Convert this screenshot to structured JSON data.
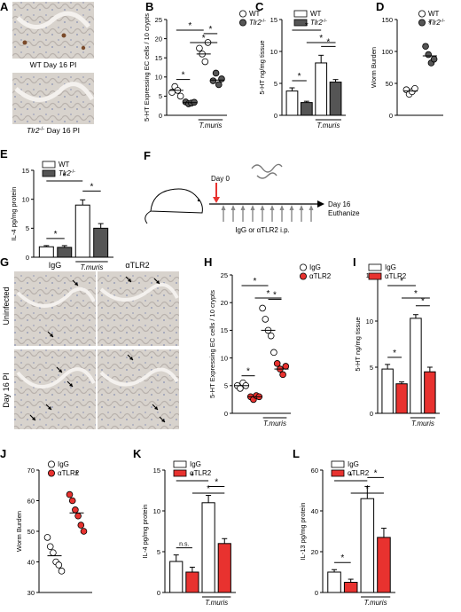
{
  "figure": {
    "panel_A": {
      "letter": "A",
      "top_label": "WT Day 16 PI",
      "bottom_label_italic": "Tlr2",
      "bottom_label_sup": "-/-",
      "bottom_label_rest": " Day 16 PI"
    },
    "panel_F": {
      "letter": "F",
      "day0": "Day 0",
      "day16": "Day 16",
      "euthanize": "Euthanize",
      "injection": "IgG or αTLR2 i.p."
    },
    "panel_G": {
      "letter": "G",
      "col1": "IgG",
      "col2": "αTLR2",
      "row1": "Uninfected",
      "row2": "Day 16 PI"
    },
    "colors": {
      "wt_fill": "#ffffff",
      "tlr2_fill": "#555555",
      "igg_fill": "#ffffff",
      "atlr2_fill": "#e8322f",
      "tissue_bg": "#d9d4cf",
      "stain_brown": "#7a4a2a"
    }
  },
  "chart_data": [
    {
      "id": "B",
      "type": "scatter",
      "ylabel": "5-HT Expressing EC cells / 10 crypts",
      "ylim": [
        0,
        25
      ],
      "yticks": [
        0,
        5,
        10,
        15,
        20,
        25
      ],
      "treatment_label": "T.muris",
      "legend": [
        "WT",
        "Tlr2-/-"
      ],
      "groups": [
        {
          "series": "WT",
          "points": [
            6,
            7.5,
            6.5,
            5
          ],
          "mean": 6.5
        },
        {
          "series": "Tlr2-/-",
          "points": [
            3.5,
            3,
            3.2,
            3.4
          ],
          "mean": 3.3
        },
        {
          "series": "WT",
          "points": [
            17.5,
            16,
            14,
            19
          ],
          "mean": 16
        },
        {
          "series": "Tlr2-/-",
          "points": [
            9,
            11,
            8,
            9.5
          ],
          "mean": 9.2
        }
      ],
      "sig": [
        "*",
        "*",
        "*",
        "*"
      ]
    },
    {
      "id": "C",
      "type": "bar",
      "ylabel": "5-HT ng/mg tissue",
      "ylim": [
        0,
        15
      ],
      "yticks": [
        0,
        5,
        10,
        15
      ],
      "treatment_label": "T.muris",
      "legend": [
        "WT",
        "Tlr2-/-"
      ],
      "bars": [
        {
          "series": "WT",
          "value": 3.8,
          "err": 0.5
        },
        {
          "series": "Tlr2-/-",
          "value": 2.0,
          "err": 0.2
        },
        {
          "series": "WT",
          "value": 8.2,
          "err": 1.2
        },
        {
          "series": "Tlr2-/-",
          "value": 5.2,
          "err": 0.4
        }
      ],
      "sig": [
        "*",
        "*",
        "*",
        "*"
      ]
    },
    {
      "id": "D",
      "type": "scatter",
      "ylabel": "Worm Burden",
      "ylim": [
        0,
        150
      ],
      "yticks": [
        0,
        50,
        100,
        150
      ],
      "legend": [
        "WT",
        "Tlr2-/-"
      ],
      "groups": [
        {
          "series": "WT",
          "points": [
            40,
            33,
            37,
            42
          ],
          "mean": 38
        },
        {
          "series": "Tlr2-/-",
          "points": [
            108,
            95,
            82,
            88
          ],
          "mean": 93
        }
      ],
      "sig": [
        "*"
      ]
    },
    {
      "id": "E",
      "type": "bar",
      "ylabel": "IL-4 pg/mg protein",
      "ylim": [
        0,
        15
      ],
      "yticks": [
        0,
        5,
        10,
        15
      ],
      "treatment_label": "T.muris",
      "legend": [
        "WT",
        "Tlr2-/-"
      ],
      "bars": [
        {
          "series": "WT",
          "value": 1.8,
          "err": 0.2
        },
        {
          "series": "Tlr2-/-",
          "value": 1.7,
          "err": 0.3
        },
        {
          "series": "WT",
          "value": 9.0,
          "err": 0.9
        },
        {
          "series": "Tlr2-/-",
          "value": 5.0,
          "err": 0.8
        }
      ],
      "sig": [
        "*",
        "*",
        "*"
      ]
    },
    {
      "id": "H",
      "type": "scatter",
      "ylabel": "5-HT Expressing EC cells / 10 crypts",
      "ylim": [
        0,
        25
      ],
      "yticks": [
        0,
        5,
        10,
        15,
        20,
        25
      ],
      "treatment_label": "T.muris",
      "legend": [
        "IgG",
        "αTLR2"
      ],
      "groups": [
        {
          "series": "IgG",
          "points": [
            5,
            4.5,
            5.5,
            5
          ],
          "mean": 5
        },
        {
          "series": "αTLR2",
          "points": [
            3,
            2.5,
            3.2,
            3
          ],
          "mean": 3
        },
        {
          "series": "IgG",
          "points": [
            19,
            17,
            15,
            14,
            11
          ],
          "mean": 15
        },
        {
          "series": "αTLR2",
          "points": [
            9,
            8,
            7,
            8.5
          ],
          "mean": 8
        }
      ],
      "sig": [
        "*",
        "*",
        "*",
        "*"
      ]
    },
    {
      "id": "I",
      "type": "bar",
      "ylabel": "5-HT ng/mg tissue",
      "ylim": [
        0,
        15
      ],
      "yticks": [
        0,
        5,
        10,
        15
      ],
      "treatment_label": "T.muris",
      "legend": [
        "IgG",
        "αTLR2"
      ],
      "bars": [
        {
          "series": "IgG",
          "value": 4.8,
          "err": 0.5
        },
        {
          "series": "αTLR2",
          "value": 3.2,
          "err": 0.2
        },
        {
          "series": "IgG",
          "value": 10.3,
          "err": 0.4
        },
        {
          "series": "αTLR2",
          "value": 4.5,
          "err": 0.5
        }
      ],
      "sig": [
        "*",
        "*",
        "*",
        "*"
      ]
    },
    {
      "id": "J",
      "type": "scatter",
      "ylabel": "Worm Burden",
      "ylim": [
        30,
        70
      ],
      "yticks": [
        30,
        40,
        50,
        60,
        70
      ],
      "legend": [
        "IgG",
        "αTLR2"
      ],
      "groups": [
        {
          "series": "IgG",
          "points": [
            48,
            45,
            43,
            40,
            39,
            37
          ],
          "mean": 42
        },
        {
          "series": "αTLR2",
          "points": [
            62,
            60,
            57,
            55,
            52,
            50
          ],
          "mean": 56
        }
      ],
      "sig": [
        "*"
      ]
    },
    {
      "id": "K",
      "type": "bar",
      "ylabel": "IL-4 pg/mg protein",
      "ylim": [
        0,
        15
      ],
      "yticks": [
        0,
        5,
        10,
        15
      ],
      "treatment_label": "T.muris",
      "legend": [
        "IgG",
        "αTLR2"
      ],
      "bars": [
        {
          "series": "IgG",
          "value": 3.8,
          "err": 0.8
        },
        {
          "series": "αTLR2",
          "value": 2.5,
          "err": 0.6
        },
        {
          "series": "IgG",
          "value": 11.0,
          "err": 0.9
        },
        {
          "series": "αTLR2",
          "value": 6.0,
          "err": 0.6
        }
      ],
      "sig": [
        "n.s.",
        "*",
        "*",
        "*"
      ]
    },
    {
      "id": "L",
      "type": "bar",
      "ylabel": "IL-13 pg/mg protein",
      "ylim": [
        0,
        60
      ],
      "yticks": [
        0,
        20,
        40,
        60
      ],
      "treatment_label": "T.muris",
      "legend": [
        "IgG",
        "αTLR2"
      ],
      "bars": [
        {
          "series": "IgG",
          "value": 10.0,
          "err": 1.2
        },
        {
          "series": "αTLR2",
          "value": 5.0,
          "err": 1.5
        },
        {
          "series": "IgG",
          "value": 46.0,
          "err": 6.0
        },
        {
          "series": "αTLR2",
          "value": 27.0,
          "err": 4.5
        }
      ],
      "sig": [
        "*",
        "*",
        "*",
        "*"
      ]
    }
  ]
}
